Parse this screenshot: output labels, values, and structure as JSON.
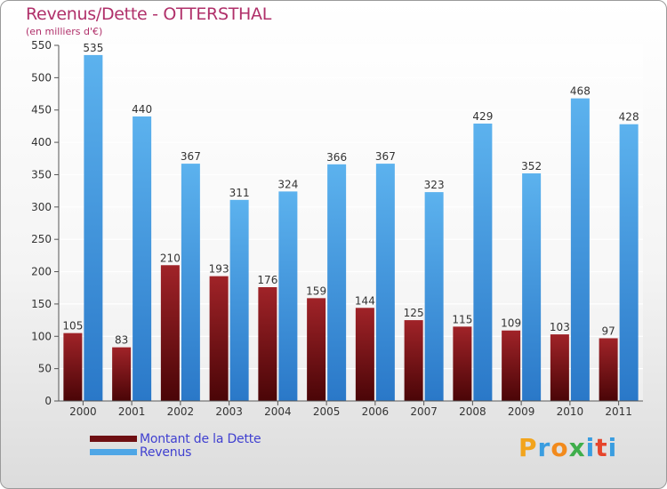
{
  "title": "Revenus/Dette - OTTERSTHAL",
  "subtitle": "(en milliers d'€)",
  "legend": {
    "items": [
      {
        "label": "Montant de la Dette",
        "color": "#6e0f12"
      },
      {
        "label": "Revenus",
        "color": "#4ea6e6"
      }
    ]
  },
  "logo": {
    "text": "Proxiti",
    "letters": [
      {
        "ch": "P",
        "color": "#f2a41c"
      },
      {
        "ch": "r",
        "color": "#3a9de0"
      },
      {
        "ch": "o",
        "color": "#f28a1c"
      },
      {
        "ch": "x",
        "color": "#3fae4b"
      },
      {
        "ch": "i",
        "color": "#3a9de0"
      },
      {
        "ch": "t",
        "color": "#e6452c"
      },
      {
        "ch": "i",
        "color": "#3a9de0"
      }
    ]
  },
  "chart_data": {
    "type": "bar",
    "title": "Revenus/Dette - OTTERSTHAL",
    "subtitle": "(en milliers d'€)",
    "categories": [
      "2000",
      "2001",
      "2002",
      "2003",
      "2004",
      "2005",
      "2006",
      "2007",
      "2008",
      "2009",
      "2010",
      "2011"
    ],
    "series": [
      {
        "name": "Montant de la Dette",
        "color": "#6e0f12",
        "values": [
          105,
          83,
          210,
          193,
          176,
          159,
          144,
          125,
          115,
          109,
          103,
          97
        ]
      },
      {
        "name": "Revenus",
        "color": "#4ea6e6",
        "values": [
          535,
          440,
          367,
          311,
          324,
          366,
          367,
          323,
          429,
          352,
          468,
          428
        ]
      }
    ],
    "ylim": [
      0,
      550
    ],
    "yticks": [
      0,
      50,
      100,
      150,
      200,
      250,
      300,
      350,
      400,
      450,
      500,
      550
    ],
    "grid": true,
    "legend_position": "bottom-left"
  }
}
